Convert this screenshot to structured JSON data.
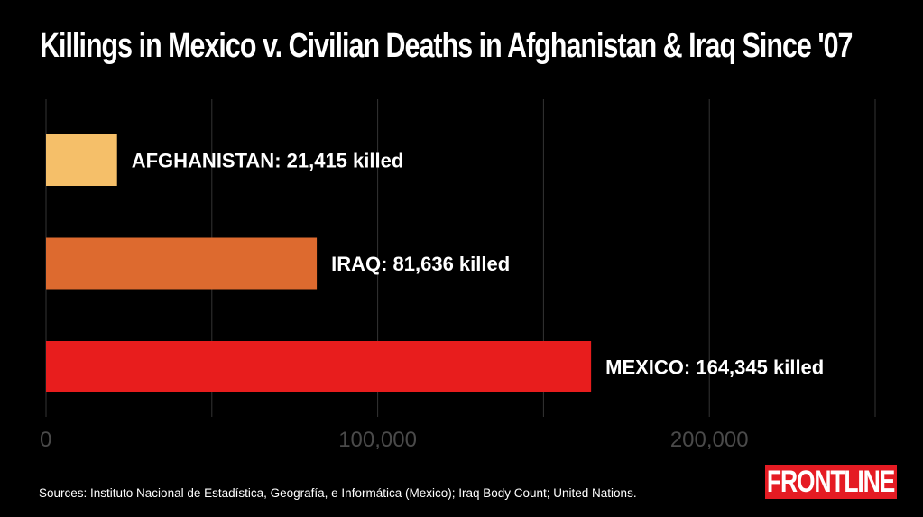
{
  "chart_data": {
    "type": "bar",
    "orientation": "horizontal",
    "title": "Killings in Mexico v. Civilian Deaths in Afghanistan & Iraq Since '07",
    "categories": [
      "AFGHANISTAN",
      "IRAQ",
      "MEXICO"
    ],
    "values": [
      21415,
      81636,
      164345
    ],
    "data_labels": [
      "AFGHANISTAN: 21,415 killed",
      "IRAQ: 81,636 killed",
      "MEXICO: 164,345 killed"
    ],
    "colors": [
      "#f5bf69",
      "#dd6a2f",
      "#e81d1d"
    ],
    "xlim": [
      0,
      250000
    ],
    "gridlines": [
      0,
      50000,
      100000,
      150000,
      200000,
      250000
    ],
    "x_ticks": [
      0,
      100000,
      200000
    ],
    "x_tick_labels": [
      "0",
      "100,000",
      "200,000"
    ],
    "grid": true,
    "gridline_color": "#333333",
    "tick_label_color": "#4a4a4a",
    "xlabel": "",
    "ylabel": ""
  },
  "sources": "Sources: Instituto Nacional de Estadística, Geografía, e Informática (Mexico); Iraq Body Count; United Nations.",
  "logo": {
    "text": "FRONTLINE",
    "color": "#e51b23"
  },
  "theme": {
    "background": "#000000",
    "text": "#ffffff"
  }
}
